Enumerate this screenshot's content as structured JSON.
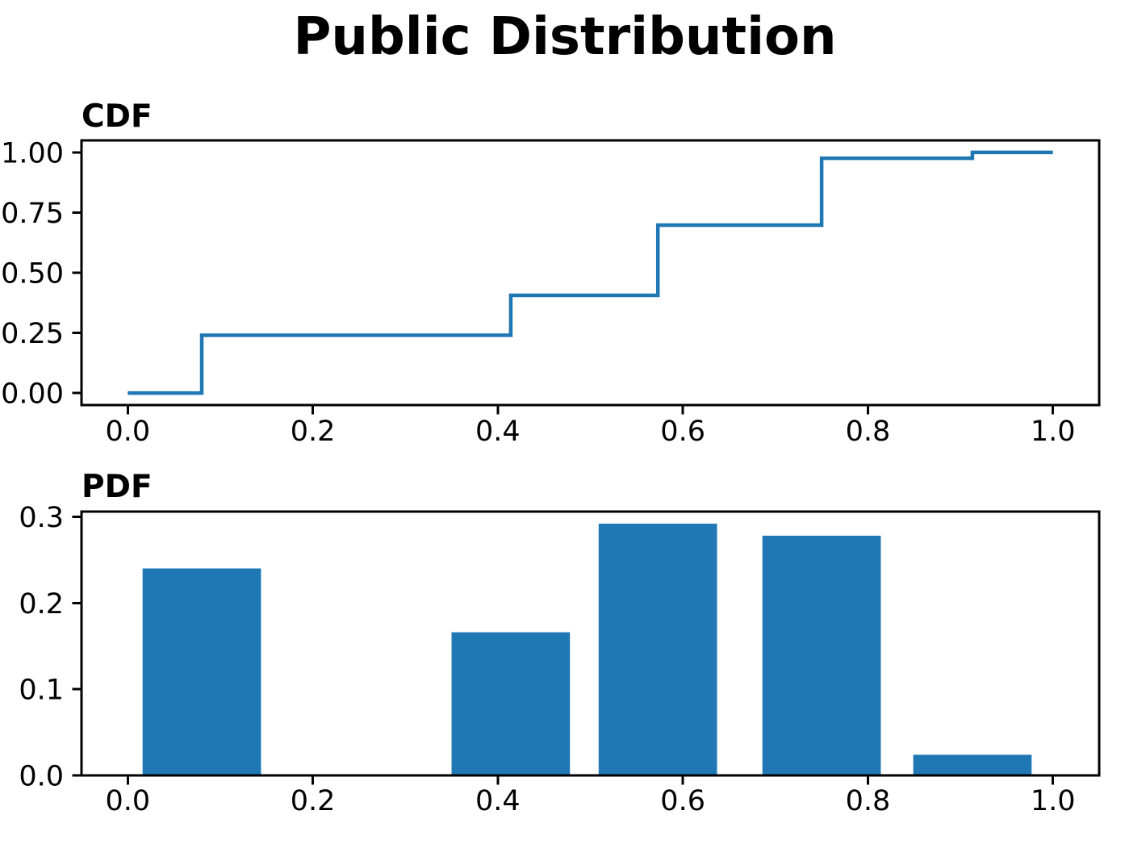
{
  "figure": {
    "title": "Public Distribution",
    "background_color": "#ffffff",
    "accent_color": "#1f77b4",
    "text_color": "#000000"
  },
  "chart_data": [
    {
      "id": "cdf",
      "type": "line",
      "subtype": "step",
      "title": "CDF",
      "line_color": "#1f77b4",
      "grid": false,
      "legend": null,
      "xlim": [
        -0.05,
        1.05
      ],
      "ylim": [
        -0.05,
        1.05
      ],
      "step_x": [
        0.0,
        0.08,
        0.414,
        0.573,
        0.75,
        0.913,
        1.0
      ],
      "step_y": [
        0.0,
        0.24,
        0.406,
        0.698,
        0.976,
        1.0,
        1.0
      ],
      "xticks": {
        "values": [
          0.0,
          0.2,
          0.4,
          0.6,
          0.8,
          1.0
        ],
        "labels": [
          "0.0",
          "0.2",
          "0.4",
          "0.6",
          "0.8",
          "1.0"
        ]
      },
      "yticks": {
        "values": [
          0.0,
          0.25,
          0.5,
          0.75,
          1.0
        ],
        "labels": [
          "0.00",
          "0.25",
          "0.50",
          "0.75",
          "1.00"
        ]
      }
    },
    {
      "id": "pdf",
      "type": "bar",
      "title": "PDF",
      "bar_color": "#1f77b4",
      "grid": false,
      "legend": null,
      "xlim": [
        -0.05,
        1.05
      ],
      "ylim": [
        0,
        0.306
      ],
      "bar_centers": [
        0.08,
        0.414,
        0.573,
        0.75,
        0.913
      ],
      "bar_heights": [
        0.24,
        0.166,
        0.292,
        0.278,
        0.024
      ],
      "bar_width": 0.128,
      "xticks": {
        "values": [
          0.0,
          0.2,
          0.4,
          0.6,
          0.8,
          1.0
        ],
        "labels": [
          "0.0",
          "0.2",
          "0.4",
          "0.6",
          "0.8",
          "1.0"
        ]
      },
      "yticks": {
        "values": [
          0.0,
          0.1,
          0.2,
          0.3
        ],
        "labels": [
          "0.0",
          "0.1",
          "0.2",
          "0.3"
        ]
      }
    }
  ]
}
